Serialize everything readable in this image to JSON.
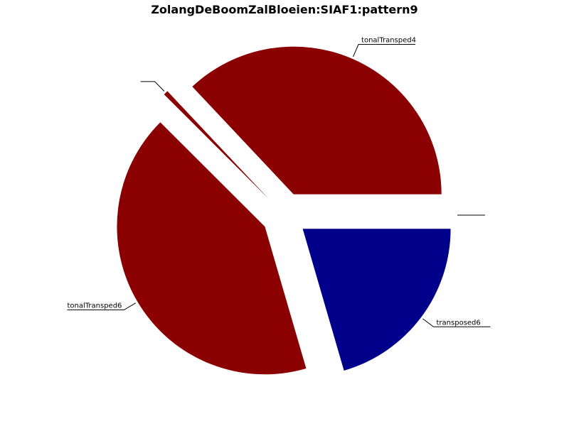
{
  "chart_data": {
    "type": "pie",
    "title": "ZolangDeBoomZalBloeien:SIAF1:pattern9",
    "slices": [
      {
        "label": "tonalTransped4",
        "value": 37,
        "color": "#8b0000"
      },
      {
        "label": "",
        "value": 0.5,
        "color": "#8b0000"
      },
      {
        "label": "tonalTransped6",
        "value": 42,
        "color": "#8b0000"
      },
      {
        "label": "transposed6",
        "value": 20.5,
        "color": "#00008b"
      },
      {
        "label": "",
        "value": 0.0,
        "color": "#00008b"
      }
    ]
  }
}
